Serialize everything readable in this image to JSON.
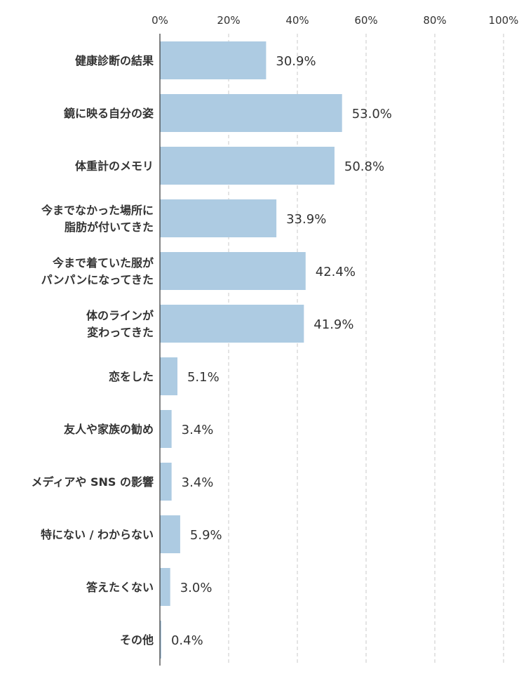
{
  "chart_data": {
    "type": "bar",
    "orientation": "horizontal",
    "title": "",
    "xlabel": "",
    "ylabel": "",
    "xlim": [
      0,
      100
    ],
    "x_ticks": [
      "0%",
      "20%",
      "40%",
      "60%",
      "80%",
      "100%"
    ],
    "grid": true,
    "bar_color": "#adcbe2",
    "categories": [
      "健康診断の結果",
      "鏡に映る自分の姿",
      "体重計のメモリ",
      "今までなかった場所に\n脂肪が付いてきた",
      "今まで着ていた服が\nパンパンになってきた",
      "体のラインが\n変わってきた",
      "恋をした",
      "友人や家族の勧め",
      "メディアや SNS の影響",
      "特にない / わからない",
      "答えたくない",
      "その他"
    ],
    "values": [
      30.9,
      53.0,
      50.8,
      33.9,
      42.4,
      41.9,
      5.1,
      3.4,
      3.4,
      5.9,
      3.0,
      0.4
    ],
    "value_labels": [
      "30.9%",
      "53.0%",
      "50.8%",
      "33.9%",
      "42.4%",
      "41.9%",
      "5.1%",
      "3.4%",
      "3.4%",
      "5.9%",
      "3.0%",
      "0.4%"
    ]
  }
}
